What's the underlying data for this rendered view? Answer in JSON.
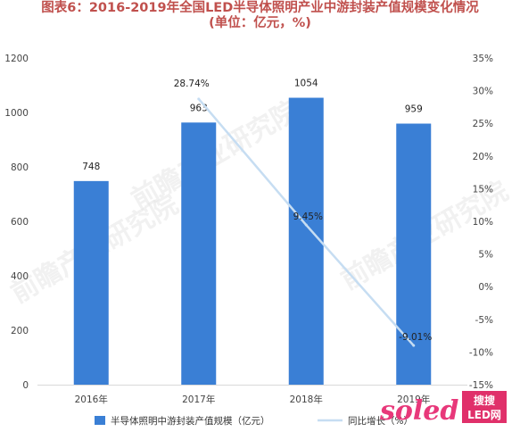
{
  "title_line1": "图表6：2016-2019年全国LED半导体照明产业中游封装产值规模变化情况",
  "title_line2": "(单位：亿元，%)",
  "watermark": "前瞻产业研究院",
  "logo": "soled搜搜LED网",
  "chart_data": {
    "type": "bar",
    "categories": [
      "2016年",
      "2017年",
      "2018年",
      "2019年"
    ],
    "series": [
      {
        "name": "半导体照明中游封装产值规模（亿元）",
        "type": "bar",
        "axis": "left",
        "color": "#3a7fd5",
        "values": [
          748,
          963,
          1054,
          959
        ],
        "data_labels": [
          "748",
          "963",
          "1054",
          "959"
        ]
      },
      {
        "name": "同比增长（%）",
        "type": "line",
        "axis": "right",
        "color": "#c6ddf2",
        "values": [
          null,
          28.74,
          9.45,
          -9.01
        ],
        "data_labels": [
          "",
          "28.74%",
          "9.45%",
          "-9.01%"
        ]
      }
    ],
    "left_axis": {
      "ylim": [
        0,
        1200
      ],
      "ticks": [
        "0",
        "200",
        "400",
        "600",
        "800",
        "1000",
        "1200"
      ]
    },
    "right_axis": {
      "ylim": [
        -15,
        35
      ],
      "ticks": [
        "-15%",
        "-10%",
        "-5%",
        "0%",
        "5%",
        "10%",
        "15%",
        "20%",
        "25%",
        "30%",
        "35%"
      ]
    },
    "legend_position": "bottom",
    "grid": false
  }
}
